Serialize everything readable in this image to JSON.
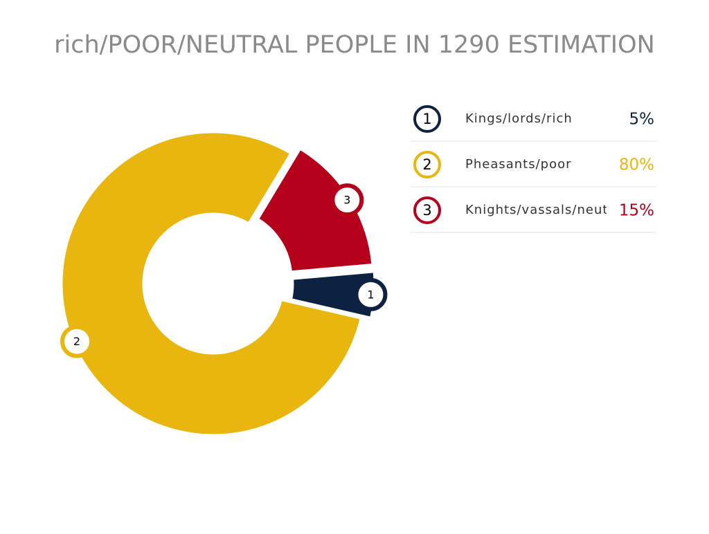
{
  "chart_data": {
    "type": "donut",
    "title": "rich/POOR/NEUTRAL PEOPLE IN 1290 ESTIMATION",
    "categories": [
      "Kings/lords/rich",
      "Pheasants/poor",
      "Knights/vassals/neut"
    ],
    "markers": [
      "1",
      "2",
      "3"
    ],
    "values": [
      5,
      80,
      15
    ],
    "value_labels": [
      "5%",
      "80%",
      "15%"
    ],
    "colors": [
      "#0d2240",
      "#e8b60f",
      "#b5001c"
    ],
    "exploded": [
      true,
      false,
      true
    ]
  }
}
